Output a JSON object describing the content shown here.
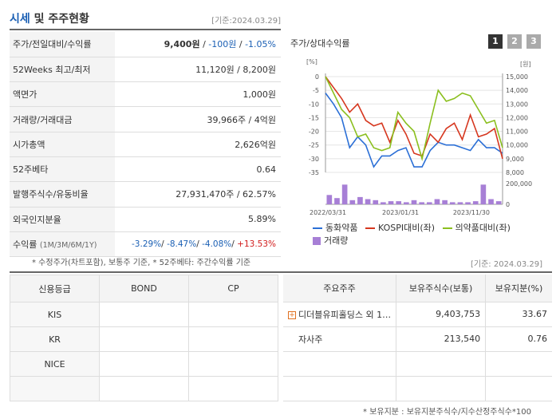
{
  "header": {
    "title_part1": "시세",
    "title_part2": " 및 주주현황",
    "base_date": "[기준:2024.03.29]"
  },
  "info_rows": [
    {
      "label": "주가/전일대비/수익률",
      "v1": "9,400원",
      "sep1": " / ",
      "v2": "-100원",
      "sep2": " / ",
      "v3": "-1.05%"
    },
    {
      "label": "52Weeks 최고/최저",
      "value": "11,120원 / 8,200원"
    },
    {
      "label": "액면가",
      "value": "1,000원"
    },
    {
      "label": "거래량/거래대금",
      "value": "39,966주 / 4억원"
    },
    {
      "label": "시가총액",
      "value": "2,626억원"
    },
    {
      "label": "52주베타",
      "value": "0.64"
    },
    {
      "label": "발행주식수/유동비율",
      "value": "27,931,470주 / 62.57%"
    },
    {
      "label": "외국인지분율",
      "value": "5.89%"
    }
  ],
  "returns": {
    "label": "수익률",
    "label_small": "(1M/3M/6M/1Y)",
    "r1": "-3.29%",
    "r2": "-8.47%",
    "r3": "-4.08%",
    "r4": "+13.53%",
    "slash": "/ "
  },
  "note1": "* 수정주가(차트포함), 보통주 기준, * 52주베타: 주간수익률 기준",
  "chart_panel": {
    "title": "주가/상대수익률",
    "buttons": [
      "1",
      "2",
      "3"
    ]
  },
  "chart_data": {
    "type": "line",
    "left_axis_unit": "[%]",
    "right_axis_unit": "[원]",
    "left_ticks": [
      "0",
      "-5",
      "-10",
      "-15",
      "-20",
      "-25",
      "-30",
      "-35"
    ],
    "right_ticks": [
      "15,000",
      "14,000",
      "13,000",
      "12,000",
      "11,000",
      "10,000",
      "9,000",
      "8,000"
    ],
    "volume_ticks": [
      "200,000",
      "0"
    ],
    "x_ticks": [
      "2022/03/31",
      "2023/01/31",
      "2023/11/30"
    ],
    "ylim_left": [
      -35,
      0
    ],
    "series": [
      {
        "name": "동화약품",
        "color": "#2b6fd6",
        "values": [
          -6,
          -10,
          -15,
          -26,
          -22,
          -25,
          -33,
          -29,
          -29,
          -27,
          -26,
          -33,
          -33,
          -27,
          -24,
          -25,
          -25,
          -26,
          -27,
          -23,
          -26,
          -26,
          -28
        ]
      },
      {
        "name": "KOSPI대비(좌)",
        "color": "#d6371f",
        "values": [
          0,
          -4,
          -8,
          -13,
          -10,
          -16,
          -18,
          -17,
          -24,
          -16,
          -21,
          -28,
          -29,
          -21,
          -24,
          -19,
          -17,
          -23,
          -14,
          -22,
          -21,
          -19,
          -30
        ]
      },
      {
        "name": "의약품대비(좌)",
        "color": "#8bbf1f",
        "values": [
          0,
          -6,
          -12,
          -15,
          -22,
          -21,
          -26,
          -27,
          -26,
          -13,
          -17,
          -20,
          -30,
          -17,
          -5,
          -9,
          -8,
          -6,
          -7,
          -12,
          -17,
          -16,
          -26
        ]
      }
    ],
    "volume": {
      "name": "거래량",
      "color": "#a77fd6",
      "values": [
        0.45,
        0.3,
        0.95,
        0.2,
        0.35,
        0.25,
        0.2,
        0.1,
        0.15,
        0.15,
        0.1,
        0.2,
        0.1,
        0.1,
        0.25,
        0.2,
        0.1,
        0.1,
        0.1,
        0.15,
        0.95,
        0.25,
        0.15
      ]
    }
  },
  "date2": "[기준: 2024.03.29]",
  "credit": {
    "headers": [
      "신용등급",
      "BOND",
      "CP"
    ],
    "rows": [
      [
        "KIS",
        "",
        ""
      ],
      [
        "KR",
        "",
        ""
      ],
      [
        "NICE",
        "",
        ""
      ],
      [
        "",
        "",
        ""
      ]
    ]
  },
  "holders": {
    "headers": [
      "주요주주",
      "보유주식수(보통)",
      "보유지분(%)"
    ],
    "rows": [
      {
        "name": "디더블유피홀딩스 외 1…",
        "shares": "9,403,753",
        "pct": "33.67",
        "expand": true
      },
      {
        "name": "자사주",
        "shares": "213,540",
        "pct": "0.76",
        "expand": false
      },
      {
        "name": "",
        "shares": "",
        "pct": "",
        "expand": false
      },
      {
        "name": "",
        "shares": "",
        "pct": "",
        "expand": false
      }
    ]
  },
  "note2": "* 보유지분 : 보유지분주식수/지수산정주식수*100",
  "colors": {
    "accent": "#1a5fb4",
    "negative": "#1a5fb4",
    "positive": "#d11c1c",
    "button_active": "#333333",
    "button_inactive": "#aaaaaa"
  }
}
